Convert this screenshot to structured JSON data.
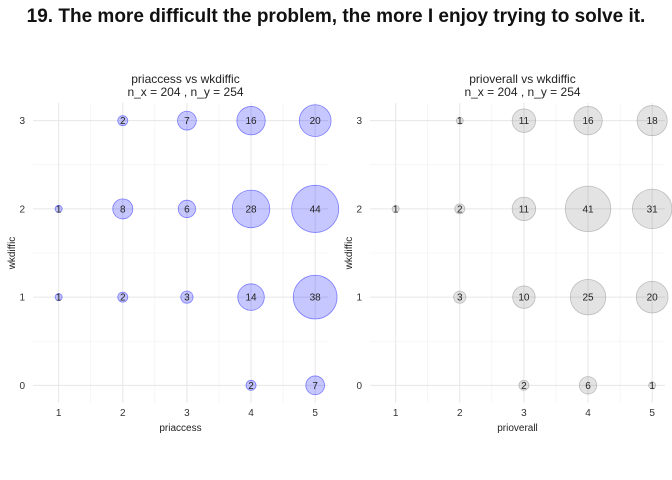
{
  "title": "19. The more difficult the problem, the more I enjoy trying to solve it.",
  "chart_data": [
    {
      "type": "scatter",
      "title": "priaccess vs wkdiffic",
      "subtitle": "n_x = 204 , n_y = 254",
      "xlabel": "priaccess",
      "ylabel": "wkdiffic",
      "x_ticks": [
        1,
        2,
        3,
        4,
        5
      ],
      "y_ticks": [
        0,
        1,
        2,
        3
      ],
      "xlim": [
        0.6,
        5.2
      ],
      "ylim": [
        -0.2,
        3.2
      ],
      "grid": true,
      "color": "#0000ff",
      "points": [
        {
          "x": 2,
          "y": 3,
          "n": 2
        },
        {
          "x": 3,
          "y": 3,
          "n": 7
        },
        {
          "x": 4,
          "y": 3,
          "n": 16
        },
        {
          "x": 5,
          "y": 3,
          "n": 20
        },
        {
          "x": 1,
          "y": 2,
          "n": 1
        },
        {
          "x": 2,
          "y": 2,
          "n": 8
        },
        {
          "x": 3,
          "y": 2,
          "n": 6
        },
        {
          "x": 4,
          "y": 2,
          "n": 28
        },
        {
          "x": 5,
          "y": 2,
          "n": 44
        },
        {
          "x": 1,
          "y": 1,
          "n": 1
        },
        {
          "x": 2,
          "y": 1,
          "n": 2
        },
        {
          "x": 3,
          "y": 1,
          "n": 3
        },
        {
          "x": 4,
          "y": 1,
          "n": 14
        },
        {
          "x": 5,
          "y": 1,
          "n": 38
        },
        {
          "x": 4,
          "y": 0,
          "n": 2
        },
        {
          "x": 5,
          "y": 0,
          "n": 7
        }
      ]
    },
    {
      "type": "scatter",
      "title": "prioverall vs wkdiffic",
      "subtitle": "n_x = 204 , n_y = 254",
      "xlabel": "prioverall",
      "ylabel": "wkdiffic",
      "x_ticks": [
        1,
        2,
        3,
        4,
        5
      ],
      "y_ticks": [
        0,
        1,
        2,
        3
      ],
      "xlim": [
        0.6,
        5.2
      ],
      "ylim": [
        -0.2,
        3.2
      ],
      "grid": true,
      "color": "#7f7f7f",
      "points": [
        {
          "x": 2,
          "y": 3,
          "n": 1
        },
        {
          "x": 3,
          "y": 3,
          "n": 11
        },
        {
          "x": 4,
          "y": 3,
          "n": 16
        },
        {
          "x": 5,
          "y": 3,
          "n": 18
        },
        {
          "x": 1,
          "y": 2,
          "n": 1
        },
        {
          "x": 2,
          "y": 2,
          "n": 2
        },
        {
          "x": 3,
          "y": 2,
          "n": 11
        },
        {
          "x": 4,
          "y": 2,
          "n": 41
        },
        {
          "x": 5,
          "y": 2,
          "n": 31
        },
        {
          "x": 2,
          "y": 1,
          "n": 3
        },
        {
          "x": 3,
          "y": 1,
          "n": 10
        },
        {
          "x": 4,
          "y": 1,
          "n": 25
        },
        {
          "x": 5,
          "y": 1,
          "n": 20
        },
        {
          "x": 3,
          "y": 0,
          "n": 2
        },
        {
          "x": 4,
          "y": 0,
          "n": 6
        },
        {
          "x": 5,
          "y": 0,
          "n": 1
        }
      ]
    }
  ]
}
